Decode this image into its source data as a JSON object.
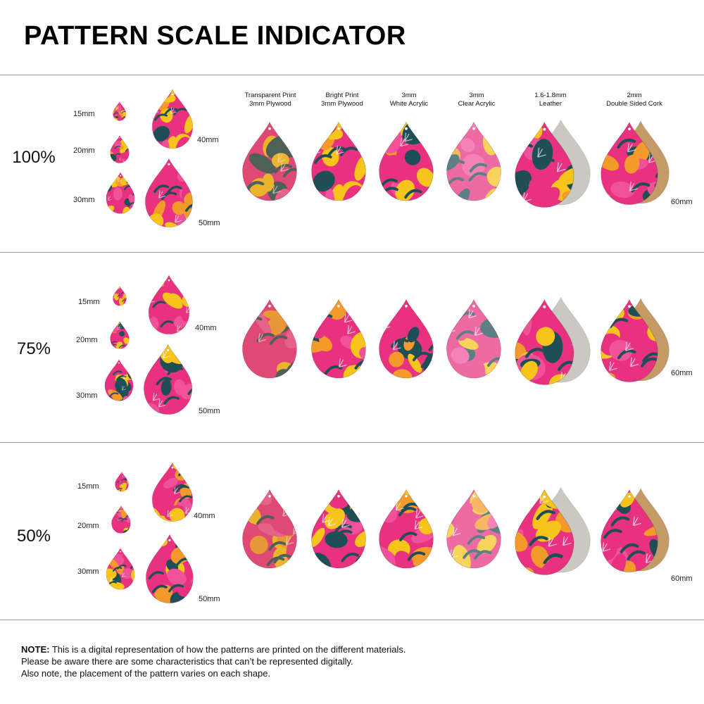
{
  "title": "PATTERN SCALE INDICATOR",
  "materials": [
    {
      "line1": "Transparent Print",
      "line2": "3mm Plywood",
      "kind": "plywood-transparent"
    },
    {
      "line1": "Bright Print",
      "line2": "3mm Plywood",
      "kind": "plywood-bright"
    },
    {
      "line1": "3mm",
      "line2": "White Acrylic",
      "kind": "white-acrylic"
    },
    {
      "line1": "3mm",
      "line2": "Clear Acrylic",
      "kind": "clear-acrylic"
    },
    {
      "line1": "1.6-1.8mm",
      "line2": "Leather",
      "kind": "leather"
    },
    {
      "line1": "2mm",
      "line2": "Double Sided Cork",
      "kind": "cork"
    }
  ],
  "sections": [
    {
      "scale": "100%",
      "sizes": [
        "15mm",
        "20mm",
        "30mm",
        "40mm",
        "50mm"
      ],
      "large_size": "60mm"
    },
    {
      "scale": "75%",
      "sizes": [
        "15mm",
        "20mm",
        "30mm",
        "40mm",
        "50mm"
      ],
      "large_size": "60mm"
    },
    {
      "scale": "50%",
      "sizes": [
        "15mm",
        "20mm",
        "30mm",
        "40mm",
        "50mm"
      ],
      "large_size": "60mm"
    }
  ],
  "note": {
    "label": "NOTE:",
    "line1": " This is a digital representation of how the patterns are printed on the different materials.",
    "line2": "Please be aware there are some characteristics that can’t be represented digitally.",
    "line3": "Also note, the placement of the pattern varies on each shape."
  },
  "colors": {
    "pink": "#e8317f",
    "hot_pink": "#f0529a",
    "yellow": "#f7c41c",
    "orange": "#f39a2b",
    "teal": "#1f4f56",
    "dark": "#3a1f2e",
    "leather": "#c9c9c2",
    "cork": "#c49a66",
    "wood": "#c98d5a"
  }
}
